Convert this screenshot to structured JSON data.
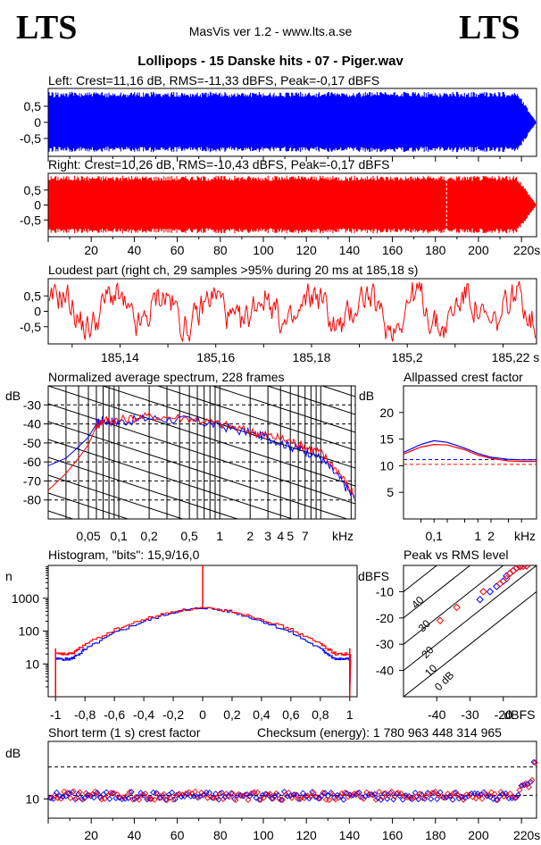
{
  "header": {
    "logo_left": "LTS",
    "logo_right": "LTS",
    "app_title": "MasVis ver 1.2 - www.lts.a.se",
    "track_title": "Lollipops - 15 Danske hits  - 07 - Piger.wav"
  },
  "colors": {
    "left": "#0000ff",
    "right": "#ff0000",
    "grid": "#000000"
  },
  "chart_data": [
    {
      "id": "left_waveform",
      "type": "area",
      "title": "Left: Crest=11,16 dB, RMS=-11,33 dBFS, Peak=-0,17 dBFS",
      "y_ticks": [
        "0,5",
        "0",
        "-0,5"
      ],
      "ylim": [
        -1,
        1
      ],
      "xlim": [
        0,
        227
      ],
      "peak_envelope": 0.98,
      "fade_out_start_s": 218,
      "series": [
        {
          "values": [
            0.95
          ]
        }
      ]
    },
    {
      "id": "right_waveform",
      "type": "area",
      "title": "Right: Crest=10,26 dB, RMS=-10,43 dBFS, Peak=-0,17 dBFS",
      "y_ticks": [
        "0,5",
        "0",
        "-0,5"
      ],
      "x_ticks": [
        "20",
        "40",
        "60",
        "80",
        "100",
        "120",
        "140",
        "160",
        "180",
        "200",
        "220s"
      ],
      "ylim": [
        -1,
        1
      ],
      "xlim": [
        0,
        227
      ],
      "marker_s": 185.18,
      "fade_out_start_s": 218,
      "series": [
        {
          "values": [
            0.98
          ]
        }
      ]
    },
    {
      "id": "loudest_part",
      "type": "line",
      "title": "Loudest part (right ch, 29 samples >95% during 20 ms at 185,18 s)",
      "y_ticks": [
        "0,5",
        "0",
        "-0,5"
      ],
      "x_ticks": [
        "185,14",
        "185,16",
        "185,18",
        "185,2",
        "185,22 s"
      ],
      "xlim": [
        185.125,
        185.227
      ],
      "ylim": [
        -1,
        1
      ]
    },
    {
      "id": "avg_spectrum",
      "type": "line",
      "title": "Normalized average spectrum, 228 frames",
      "ylabel": "dB",
      "y_ticks": [
        "-30",
        "-40",
        "-50",
        "-60",
        "-70",
        "-80"
      ],
      "x_ticks": [
        "0,05",
        "0,1",
        "0,2",
        "0,5",
        "1",
        "2",
        "3",
        "4",
        "5",
        "7",
        "kHz"
      ],
      "ylim": [
        -90,
        -20
      ],
      "xlim_khz": [
        0.02,
        22
      ],
      "freqs_khz": [
        0.02,
        0.03,
        0.04,
        0.05,
        0.06,
        0.07,
        0.1,
        0.2,
        0.5,
        1,
        2,
        3,
        5,
        7,
        10,
        15,
        22
      ],
      "series": [
        {
          "values": [
            -62,
            -58,
            -52,
            -47,
            -40,
            -38,
            -39,
            -37,
            -38,
            -41,
            -45,
            -47,
            -52,
            -54,
            -58,
            -68,
            -80
          ]
        },
        {
          "values": [
            -75,
            -66,
            -58,
            -51,
            -41,
            -38,
            -38,
            -36,
            -37,
            -40,
            -44,
            -46,
            -49,
            -52,
            -55,
            -65,
            -78
          ]
        }
      ]
    },
    {
      "id": "allpassed_crest",
      "type": "line",
      "title": "Allpassed crest factor",
      "ylabel": "dB",
      "y_ticks": [
        "20",
        "15",
        "10",
        "5"
      ],
      "x_ticks": [
        "0,1",
        "1",
        "2",
        "kHz"
      ],
      "ylim": [
        0,
        25
      ],
      "xlim_khz": [
        0.02,
        22
      ],
      "ref_lines": [
        11.16,
        10.26
      ],
      "freqs_khz": [
        0.02,
        0.05,
        0.1,
        0.2,
        0.5,
        1,
        2,
        5,
        10,
        22
      ],
      "series": [
        {
          "values": [
            12.5,
            14,
            14.7,
            14.4,
            13.3,
            12.3,
            11.6,
            11.2,
            11.1,
            11.1
          ]
        },
        {
          "values": [
            12.2,
            13.5,
            14.0,
            13.9,
            13.0,
            12.0,
            11.4,
            10.9,
            10.8,
            10.8
          ]
        }
      ]
    },
    {
      "id": "histogram",
      "type": "line",
      "title": "Histogram, \"bits\": 15,9/16,0",
      "ylabel": "n",
      "y_ticks": [
        "1000",
        "100",
        "10"
      ],
      "x_ticks": [
        "-1",
        "-0,8",
        "-0,6",
        "-0,4",
        "-0,2",
        "0",
        "0,2",
        "0,4",
        "0,6",
        "0,8",
        "1"
      ],
      "xlim": [
        -1.05,
        1.05
      ],
      "ylim_log10": [
        0,
        4
      ],
      "x": [
        -1.0,
        -0.9,
        -0.8,
        -0.6,
        -0.4,
        -0.2,
        0.0,
        0.2,
        0.4,
        0.6,
        0.8,
        0.9,
        1.0
      ],
      "series": [
        {
          "values": [
            14,
            14,
            28,
            90,
            200,
            380,
            520,
            380,
            200,
            90,
            28,
            14,
            14
          ]
        },
        {
          "values": [
            20,
            20,
            40,
            110,
            230,
            400,
            500,
            400,
            230,
            110,
            40,
            20,
            20
          ]
        }
      ]
    },
    {
      "id": "peak_vs_rms",
      "type": "scatter",
      "title": "Peak vs RMS level",
      "ylabel": "dBFS",
      "xlabel": "dBFS",
      "y_ticks": [
        "-10",
        "-20",
        "-30",
        "-40"
      ],
      "x_ticks": [
        "-40",
        "-30",
        "-20",
        "dBFS"
      ],
      "diag_labels": [
        "40",
        "30",
        "20",
        "10",
        "0 dB"
      ],
      "xlim": [
        -50,
        -10
      ],
      "ylim": [
        -50,
        0
      ],
      "series": [
        {
          "x": [
            -27,
            -24,
            -22,
            -20,
            -19,
            -18,
            -17,
            -16,
            -15,
            -14,
            -13
          ],
          "y": [
            -13,
            -10,
            -8,
            -6,
            -4,
            -3,
            -2,
            -1,
            -0.5,
            -0.3,
            -0.2
          ]
        },
        {
          "x": [
            -39,
            -34,
            -26,
            -21,
            -19,
            -18,
            -17,
            -16,
            -15,
            -14,
            -13
          ],
          "y": [
            -21,
            -16,
            -10,
            -7,
            -5,
            -3,
            -2,
            -1,
            -0.5,
            -0.3,
            -0.2
          ]
        }
      ]
    },
    {
      "id": "short_term_crest",
      "type": "scatter",
      "title": "Short term (1 s) crest factor",
      "ylabel": "dB",
      "y_ticks": [
        "10"
      ],
      "x_ticks": [
        "20",
        "40",
        "60",
        "80",
        "100",
        "120",
        "140",
        "160",
        "180",
        "200",
        "220s"
      ],
      "xlim": [
        0,
        227
      ],
      "ylim": [
        4,
        28
      ],
      "ref_lines": [
        11.16,
        20
      ],
      "baseline": 11,
      "end_points": {
        "x": [
          218,
          220,
          222,
          224,
          225,
          226
        ],
        "y": [
          12,
          13,
          14,
          15,
          17,
          22
        ]
      }
    }
  ],
  "checksum": "Checksum (energy):  1 780 963 448 314 965"
}
